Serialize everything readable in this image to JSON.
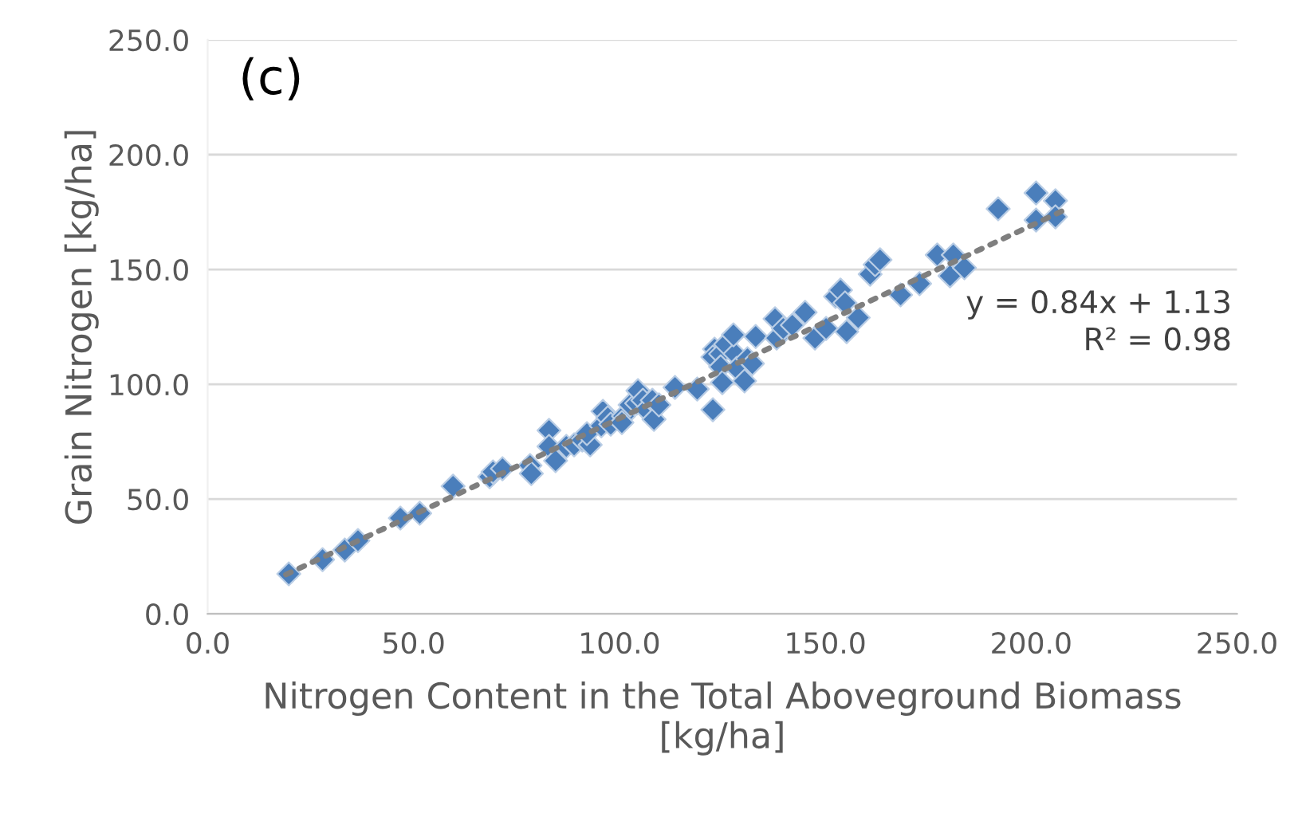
{
  "chart_data": {
    "type": "scatter",
    "xlabel": "Nitrogen Content in the Total Aboveground Biomass\n[kg/ha]",
    "ylabel": "Grain Nitrogen [kg/ha]",
    "annotations": [
      "(c)",
      "y = 0.84x + 1.13\nR² = 0.98"
    ],
    "xlim": [
      0,
      250
    ],
    "ylim": [
      0,
      250
    ],
    "xticks": [
      {
        "value": 0,
        "label": "0.0"
      },
      {
        "value": 50,
        "label": "50.0"
      },
      {
        "value": 100,
        "label": "100.0"
      },
      {
        "value": 150,
        "label": "150.0"
      },
      {
        "value": 200,
        "label": "200.0"
      },
      {
        "value": 250,
        "label": "250.0"
      }
    ],
    "yticks": [
      {
        "value": 0,
        "label": "0.0"
      },
      {
        "value": 50,
        "label": "50.0"
      },
      {
        "value": 100,
        "label": "100.0"
      },
      {
        "value": 150,
        "label": "150.0"
      },
      {
        "value": 200,
        "label": "200.0"
      },
      {
        "value": 250,
        "label": "250.0"
      }
    ],
    "grid": "y",
    "marker": "diamond",
    "series": [
      {
        "color": "#4a7ebb",
        "x": [
          19.7,
          27.9,
          33.3,
          36.5,
          46.8,
          51.5,
          59.6,
          68.5,
          69.3,
          71.6,
          78.3,
          78.6,
          82.9,
          82.9,
          84.5,
          87.1,
          89,
          91,
          92.9,
          92.1,
          95.6,
          96,
          97.2,
          97.9,
          101,
          100.6,
          102.6,
          104.2,
          104.5,
          105.7,
          106.5,
          108,
          108.4,
          109.6,
          113.5,
          118.9,
          122.7,
          123.1,
          122.7,
          124.6,
          124.6,
          125,
          125.8,
          128.1,
          128.5,
          127.7,
          130.4,
          131.1,
          132.3,
          133.1,
          137.8,
          138.2,
          139.8,
          142,
          145.1,
          147.5,
          150.2,
          152.5,
          153.7,
          154.8,
          155.2,
          158,
          160.9,
          162.1,
          163.3,
          168.3,
          172.9,
          177.2,
          180.3,
          181.1,
          183.8,
          192,
          201.2,
          205.9,
          201.2,
          205.9
        ],
        "values": [
          17.4,
          23.6,
          27.8,
          31.9,
          41.7,
          43.8,
          55.6,
          59.7,
          61.8,
          63.2,
          64.6,
          61.1,
          79.9,
          72.9,
          66.7,
          72.9,
          73.6,
          75.7,
          73.6,
          78.5,
          81.9,
          88.2,
          85.4,
          82.6,
          86.1,
          83.3,
          91,
          91.7,
          97.2,
          93,
          88.9,
          93,
          84.7,
          91,
          98.6,
          97.9,
          88.9,
          115.3,
          111.8,
          113.2,
          107.6,
          100.7,
          117.4,
          113.2,
          106.9,
          121.5,
          101.4,
          111.1,
          109,
          120.8,
          128.5,
          120.1,
          124.3,
          125.7,
          131.3,
          120.1,
          124.3,
          138.2,
          141,
          135.4,
          122.9,
          129,
          147.9,
          152.1,
          154.2,
          138.9,
          143.8,
          156.3,
          147.2,
          156.3,
          150.7,
          176.4,
          183.3,
          179.9,
          171.5,
          172.9
        ]
      },
      {
        "type": "line",
        "color": "#7f7f7f",
        "line_style": "dotted",
        "marker": "none",
        "x": [
          19,
          208
        ],
        "values": [
          17.1,
          175.8
        ]
      }
    ]
  }
}
